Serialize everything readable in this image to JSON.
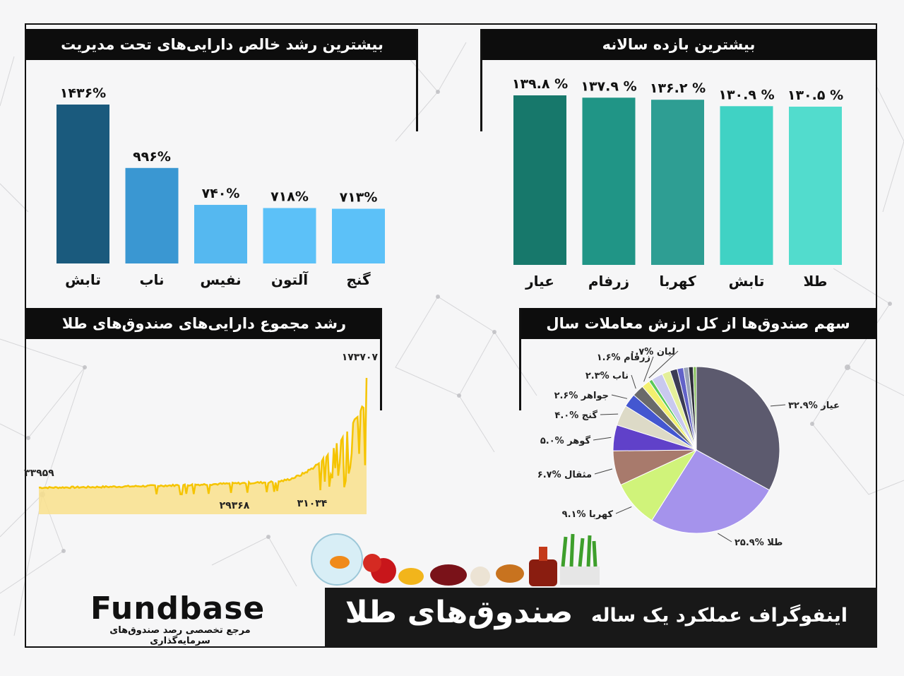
{
  "banner": {
    "subtitle": "اینفوگراف عملکرد یک ساله",
    "title": "صندوق‌های طلا"
  },
  "logo": {
    "name": "Fundbase",
    "tagline": "مرجع تخصصی رصد صندوق‌های سرمایه‌گذاری"
  },
  "chart_data": [
    {
      "id": "aum_growth",
      "type": "bar",
      "title": "بیشترین رشد خالص دارایی‌های تحت مدیریت",
      "categories": [
        "تابش",
        "ناب",
        "نفیس",
        "آلتون",
        "گنج"
      ],
      "values": [
        1436,
        996,
        740,
        718,
        713
      ],
      "value_labels": [
        "۱۴۳۶%",
        "۹۹۶%",
        "۷۴۰%",
        "۷۱۸%",
        "۷۱۳%"
      ],
      "colors": [
        "#1a5a7d",
        "#3a97d2",
        "#55b8f0",
        "#5cc1f8",
        "#5cc1f8"
      ]
    },
    {
      "id": "annual_return",
      "type": "bar",
      "title": "بیشترین بازده سالانه",
      "categories": [
        "عیار",
        "زرفام",
        "کهربا",
        "تابش",
        "طلا"
      ],
      "values": [
        139.8,
        137.9,
        136.2,
        130.9,
        130.5
      ],
      "value_labels": [
        "۱۳۹.۸ %",
        "۱۳۷.۹ %",
        "۱۳۶.۲ %",
        "۱۳۰.۹ %",
        "۱۳۰.۵ %"
      ],
      "colors": [
        "#17786b",
        "#209586",
        "#2e9e93",
        "#40d2c4",
        "#52dccd"
      ]
    },
    {
      "id": "total_aum",
      "type": "area",
      "title": "رشد مجموع دارایی‌های صندوق‌های طلا",
      "annotations": [
        {
          "text": "۳۳۹۵۹",
          "x": 0.0,
          "y": 33959
        },
        {
          "text": "۲۹۳۶۸",
          "x": 0.57,
          "y": 29368
        },
        {
          "text": "۳۱۰۳۴",
          "x": 0.8,
          "y": 31034
        },
        {
          "text": "۱۷۳۷۰۷",
          "x": 1.0,
          "y": 173707
        }
      ],
      "ylim": [
        0,
        180000
      ],
      "color": "#f5c400",
      "fill": "#f9e08c"
    },
    {
      "id": "trade_share",
      "type": "pie",
      "title": "سهم صندوق‌ها از کل ارزش معاملات سال",
      "slices": [
        {
          "name": "عیار",
          "value": 32.9,
          "label": "۳۲.۹% عیار",
          "color": "#5c5a6e"
        },
        {
          "name": "طلا",
          "value": 25.9,
          "label": "۲۵.۹% طلا",
          "color": "#a593ec"
        },
        {
          "name": "کهربا",
          "value": 9.1,
          "label": "۹.۱% کهربا",
          "color": "#d0f37a"
        },
        {
          "name": "مثقال",
          "value": 6.7,
          "label": "۶.۷% مثقال",
          "color": "#a87a6c"
        },
        {
          "name": "گوهر",
          "value": 5.0,
          "label": "۵.۰% گوهر",
          "color": "#6041c9"
        },
        {
          "name": "گنج",
          "value": 4.0,
          "label": "۴.۰% گنج",
          "color": "#dddac7"
        },
        {
          "name": "جواهر",
          "value": 2.6,
          "label": "۲.۶% جواهر",
          "color": "#4457d0"
        },
        {
          "name": "ناب",
          "value": 2.3,
          "label": "۲.۳% ناب",
          "color": "#6a6a6a"
        },
        {
          "name": "زرفام",
          "value": 1.6,
          "label": "۱.۶% زرفام",
          "color": "#f3f06e"
        },
        {
          "name": "لیان",
          "value": 0.7,
          "label": "۰.۷% لیان",
          "color": "#5ac85a"
        },
        {
          "name": "other1",
          "value": 2.2,
          "label": "",
          "color": "#c9c9ef"
        },
        {
          "name": "other2",
          "value": 1.6,
          "label": "",
          "color": "#e4ef9a"
        },
        {
          "name": "other3",
          "value": 1.4,
          "label": "",
          "color": "#3c3c55"
        },
        {
          "name": "other4",
          "value": 1.2,
          "label": "",
          "color": "#6262c8"
        },
        {
          "name": "other5",
          "value": 1.0,
          "label": "",
          "color": "#9aa3b8"
        },
        {
          "name": "other6",
          "value": 0.9,
          "label": "",
          "color": "#2e2e3a"
        },
        {
          "name": "other7",
          "value": 0.6,
          "label": "",
          "color": "#89c25e"
        }
      ]
    }
  ]
}
